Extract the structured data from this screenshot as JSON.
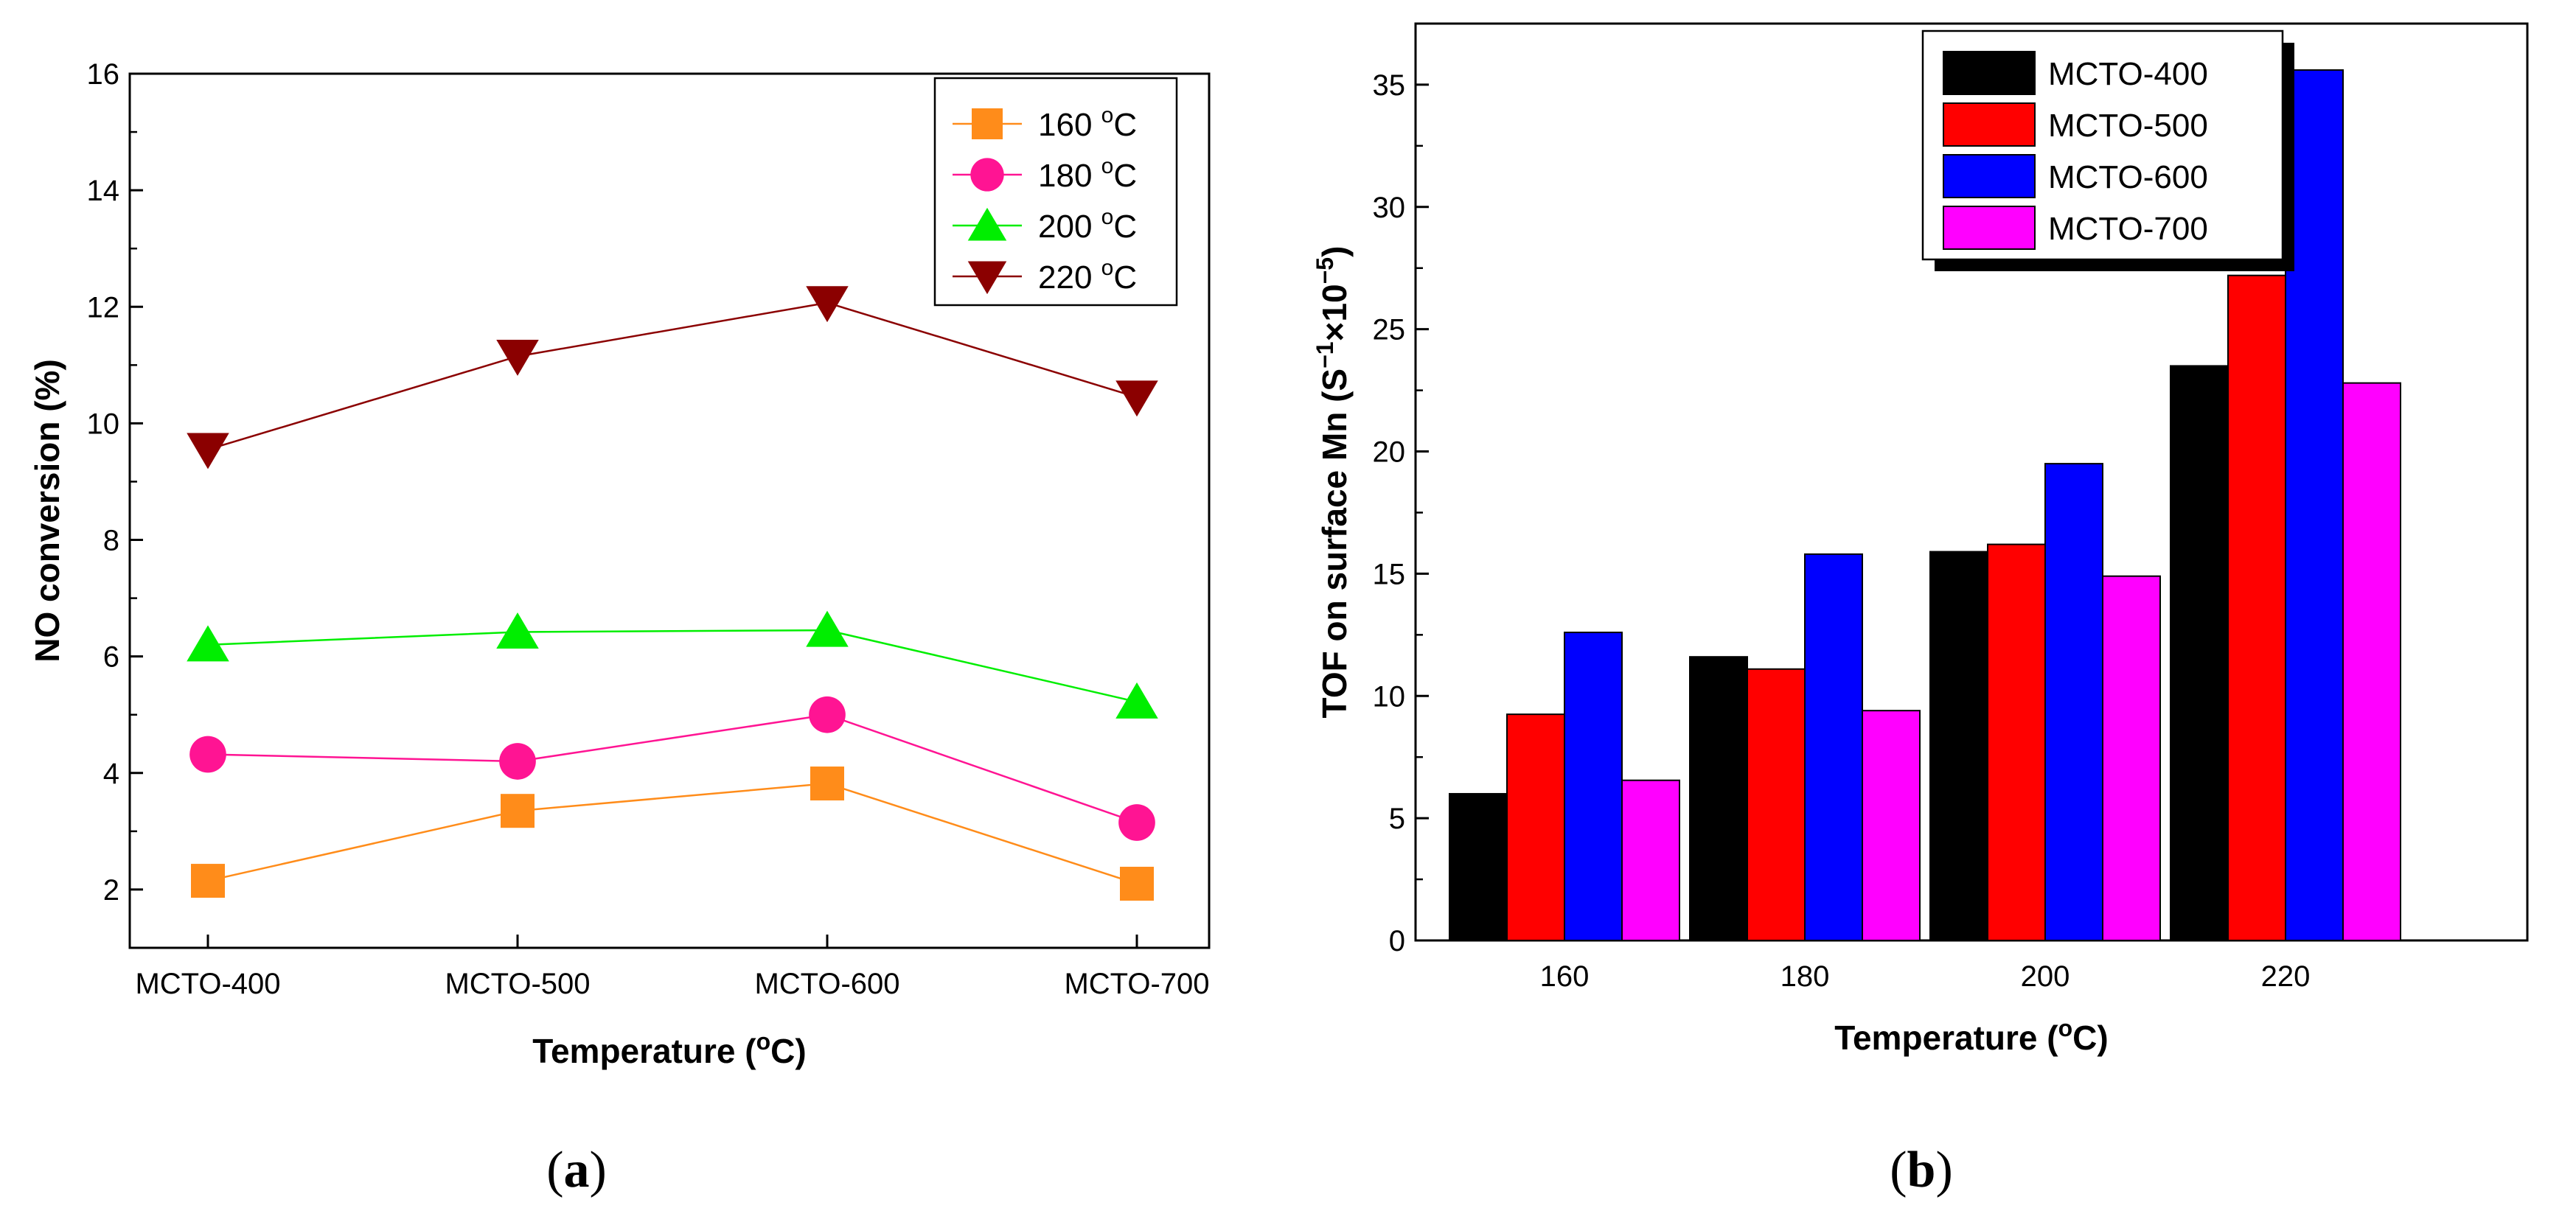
{
  "chart_data": [
    {
      "panel": "a",
      "type": "line",
      "caption_open": "(",
      "caption_label": "a",
      "caption_close": ")",
      "xlabel_main": "Temperature (",
      "xlabel_sup": "o",
      "xlabel_end": "C)",
      "ylabel": "NO conversion (%)",
      "ylim": [
        1,
        16
      ],
      "yticks": [
        "2",
        "4",
        "6",
        "8",
        "10",
        "12",
        "14",
        "16"
      ],
      "categories": [
        "MCTO-400",
        "MCTO-500",
        "MCTO-600",
        "MCTO-700"
      ],
      "legend_position": "top-right",
      "series": [
        {
          "name": "160",
          "unit_sup": "o",
          "unit": "C",
          "marker": "square",
          "color": "#ff8c1a",
          "values": [
            2.15,
            3.35,
            3.82,
            2.1
          ]
        },
        {
          "name": "180",
          "unit_sup": "o",
          "unit": "C",
          "marker": "circle",
          "color": "#ff1493",
          "values": [
            4.32,
            4.2,
            5.0,
            3.15
          ]
        },
        {
          "name": "200",
          "unit_sup": "o",
          "unit": "C",
          "marker": "triangle-up",
          "color": "#00ee00",
          "values": [
            6.2,
            6.42,
            6.45,
            5.22
          ]
        },
        {
          "name": "220",
          "unit_sup": "o",
          "unit": "C",
          "marker": "triangle-down",
          "color": "#8b0000",
          "values": [
            9.55,
            11.15,
            12.07,
            10.45
          ]
        }
      ]
    },
    {
      "panel": "b",
      "type": "bar",
      "caption_open": "(",
      "caption_label": "b",
      "caption_close": ")",
      "xlabel_main": "Temperature (",
      "xlabel_sup": "o",
      "xlabel_end": "C)",
      "ylabel_main": "TOF on surface Mn (S",
      "ylabel_sup1": "−1",
      "ylabel_mid": "×10",
      "ylabel_sup2": "−5",
      "ylabel_end": ")",
      "ylim": [
        0,
        37.5
      ],
      "yticks": [
        "0",
        "5",
        "10",
        "15",
        "20",
        "25",
        "30",
        "35"
      ],
      "categories": [
        "160",
        "180",
        "200",
        "220"
      ],
      "legend_position": "top-center",
      "series": [
        {
          "name": "MCTO-400",
          "color": "#000000",
          "values": [
            6.0,
            11.6,
            15.9,
            23.5
          ]
        },
        {
          "name": "MCTO-500",
          "color": "#ff0000",
          "values": [
            9.25,
            11.1,
            16.2,
            27.2
          ]
        },
        {
          "name": "MCTO-600",
          "color": "#0000ff",
          "values": [
            12.6,
            15.8,
            19.5,
            35.6
          ]
        },
        {
          "name": "MCTO-700",
          "color": "#ff00ff",
          "values": [
            6.55,
            9.4,
            14.9,
            22.8
          ]
        }
      ]
    }
  ]
}
